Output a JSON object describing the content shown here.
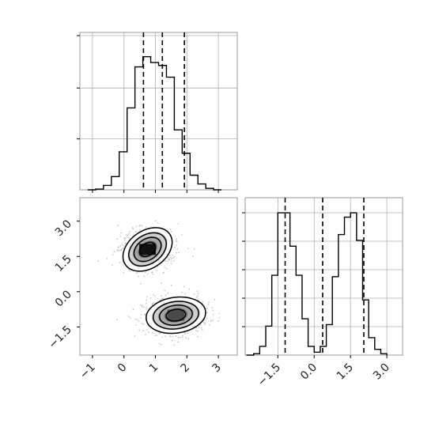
{
  "figure": {
    "type": "corner-plot",
    "grid": true
  },
  "colors": {
    "line": "#000000",
    "grid": "#b0b0b0",
    "frame": "#9a9a9a",
    "scatter": "#9a9a9a"
  },
  "chart_data": [
    {
      "panel": "hist_x",
      "type": "bar",
      "style": "step-histogram",
      "xlim": [
        -1.4,
        3.6
      ],
      "ylim": [
        0,
        1.0
      ],
      "bin_edges": [
        -0.9,
        -0.65,
        -0.4,
        -0.15,
        0.1,
        0.35,
        0.6,
        0.85,
        1.1,
        1.35,
        1.6,
        1.85,
        2.1,
        2.35,
        2.6,
        2.85,
        3.1
      ],
      "counts": [
        0.005,
        0.03,
        0.09,
        0.26,
        0.56,
        0.84,
        0.91,
        0.87,
        0.85,
        0.77,
        0.41,
        0.25,
        0.1,
        0.04,
        0.01,
        0.0
      ],
      "quantile_lines": [
        0.62,
        1.22,
        1.92
      ],
      "xticks": [],
      "yticks": []
    },
    {
      "panel": "joint",
      "type": "scatter",
      "style": "2d-histogram-contours",
      "xlim": [
        -1.4,
        3.6
      ],
      "ylim": [
        -2.7,
        4.0
      ],
      "clusters": [
        {
          "center": [
            0.75,
            1.8
          ],
          "spread": [
            0.45,
            0.42
          ],
          "rotation_deg": 35
        },
        {
          "center": [
            1.65,
            -1.0
          ],
          "spread": [
            0.5,
            0.4
          ],
          "rotation_deg": 8
        }
      ],
      "xticks": [
        "−1",
        "0",
        "1",
        "2",
        "3"
      ],
      "xtick_values": [
        -1,
        0,
        1,
        2,
        3
      ],
      "yticks": [
        "−1.5",
        "0.0",
        "1.5",
        "3.0"
      ],
      "ytick_values": [
        -1.5,
        0.0,
        1.5,
        3.0
      ]
    },
    {
      "panel": "hist_y",
      "type": "bar",
      "style": "step-histogram",
      "xlim": [
        -2.85,
        3.65
      ],
      "ylim": [
        0,
        1.0
      ],
      "bin_edges": [
        -2.5,
        -2.25,
        -2.0,
        -1.75,
        -1.5,
        -1.25,
        -1.0,
        -0.75,
        -0.5,
        -0.25,
        0.0,
        0.25,
        0.5,
        0.75,
        1.0,
        1.25,
        1.5,
        1.75,
        2.0,
        2.25,
        2.5,
        2.75,
        3.0
      ],
      "counts": [
        0.01,
        0.06,
        0.2,
        0.55,
        0.98,
        0.98,
        0.75,
        0.55,
        0.25,
        0.06,
        0.02,
        0.06,
        0.21,
        0.54,
        0.83,
        0.95,
        0.98,
        0.79,
        0.38,
        0.12,
        0.04,
        0.01
      ],
      "quantile_lines": [
        -1.2,
        0.35,
        2.05
      ],
      "xticks": [
        "−1.5",
        "0.0",
        "1.5",
        "3.0"
      ],
      "xtick_values": [
        -1.5,
        0.0,
        1.5,
        3.0
      ],
      "yticks": []
    }
  ]
}
